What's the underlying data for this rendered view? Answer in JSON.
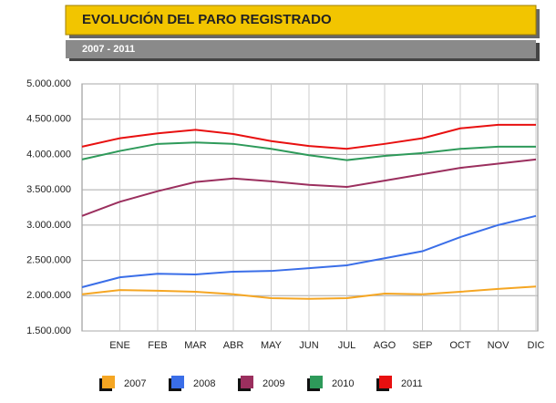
{
  "chart_data": {
    "type": "line",
    "title": "EVOLUCIÓN DEL PARO REGISTRADO",
    "subtitle": "2007 - 2011",
    "categories": [
      null,
      "ENE",
      "FEB",
      "MAR",
      "ABR",
      "MAY",
      "JUN",
      "JUL",
      "AGO",
      "SEP",
      "OCT",
      "NOV",
      "DIC"
    ],
    "series": [
      {
        "name": "2007",
        "color": "#f5a623",
        "values": [
          2020000,
          2080000,
          2070000,
          2055000,
          2020000,
          1965000,
          1955000,
          1965000,
          2030000,
          2020000,
          2055000,
          2095000,
          2130000
        ]
      },
      {
        "name": "2008",
        "color": "#3a6ee8",
        "values": [
          2120000,
          2260000,
          2310000,
          2300000,
          2340000,
          2350000,
          2390000,
          2430000,
          2530000,
          2630000,
          2830000,
          3000000,
          3130000
        ]
      },
      {
        "name": "2009",
        "color": "#9b2f5e",
        "values": [
          3130000,
          3330000,
          3480000,
          3610000,
          3660000,
          3620000,
          3570000,
          3540000,
          3630000,
          3720000,
          3810000,
          3870000,
          3930000
        ]
      },
      {
        "name": "2010",
        "color": "#2e9a5a",
        "values": [
          3930000,
          4050000,
          4150000,
          4170000,
          4150000,
          4080000,
          3990000,
          3920000,
          3980000,
          4020000,
          4080000,
          4110000,
          4110000
        ]
      },
      {
        "name": "2011",
        "color": "#e81010",
        "values": [
          4110000,
          4230000,
          4300000,
          4350000,
          4290000,
          4190000,
          4120000,
          4080000,
          4150000,
          4230000,
          4370000,
          4420000,
          4420000
        ]
      }
    ],
    "ylim": [
      1500000,
      5000000
    ],
    "yticks": [
      {
        "value": 1500000,
        "label": "1.500.000"
      },
      {
        "value": 2000000,
        "label": "2.000.000"
      },
      {
        "value": 2500000,
        "label": "2.500.000"
      },
      {
        "value": 3000000,
        "label": "3.000.000"
      },
      {
        "value": 3500000,
        "label": "3.500.000"
      },
      {
        "value": 4000000,
        "label": "4.000.000"
      },
      {
        "value": 4500000,
        "label": "4.500.000"
      },
      {
        "value": 5000000,
        "label": "5.000.000"
      }
    ],
    "grid": true
  }
}
